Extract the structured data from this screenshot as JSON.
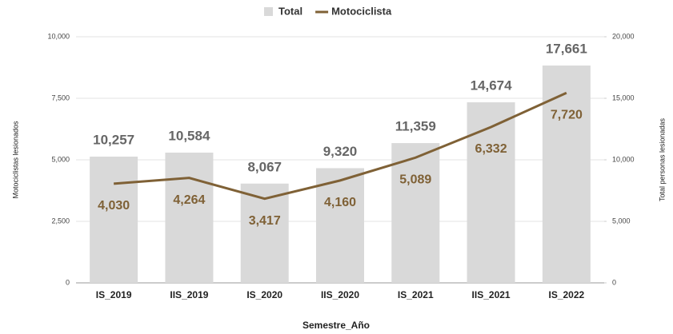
{
  "chart_data": {
    "type": "bar",
    "categories": [
      "IS_2019",
      "IIS_2019",
      "IS_2020",
      "IIS_2020",
      "IS_2021",
      "IIS_2021",
      "IS_2022"
    ],
    "x_label": "Semestre_Año",
    "y_label": "Motociclistas lesionados",
    "y2_label": "Total personas lesionadas",
    "ylim": [
      0,
      10000
    ],
    "yticks": [
      0,
      {
        "value": 2500,
        "label": "2,500"
      },
      {
        "value": 5000,
        "label": "5,000"
      },
      {
        "value": 7500,
        "label": "7,500"
      },
      {
        "value": 10000,
        "label": "10,000"
      }
    ],
    "y2lim": [
      0,
      20000
    ],
    "y2ticks": [
      0,
      {
        "value": 5000,
        "label": "5,000"
      },
      {
        "value": 10000,
        "label": "10,000"
      },
      {
        "value": 15000,
        "label": "15,000"
      },
      {
        "value": 20000,
        "label": "20,000"
      }
    ],
    "grid": true,
    "legend": "top",
    "series": [
      {
        "name": "Total",
        "type": "bar",
        "axis": "y2",
        "color": "#d9d9d9",
        "values": [
          10257,
          10584,
          8067,
          9320,
          11359,
          14674,
          17661
        ],
        "value_labels": [
          "10,257",
          "10,584",
          "8,067",
          "9,320",
          "11,359",
          "14,674",
          "17,661"
        ]
      },
      {
        "name": "Motociclista",
        "type": "line",
        "color": "#7f6136",
        "values": [
          4030,
          4264,
          3417,
          4160,
          5089,
          6332,
          7720
        ],
        "value_labels": [
          "4,030",
          "4,264",
          "3,417",
          "4,160",
          "5,089",
          "6,332",
          "7,720"
        ]
      }
    ]
  }
}
